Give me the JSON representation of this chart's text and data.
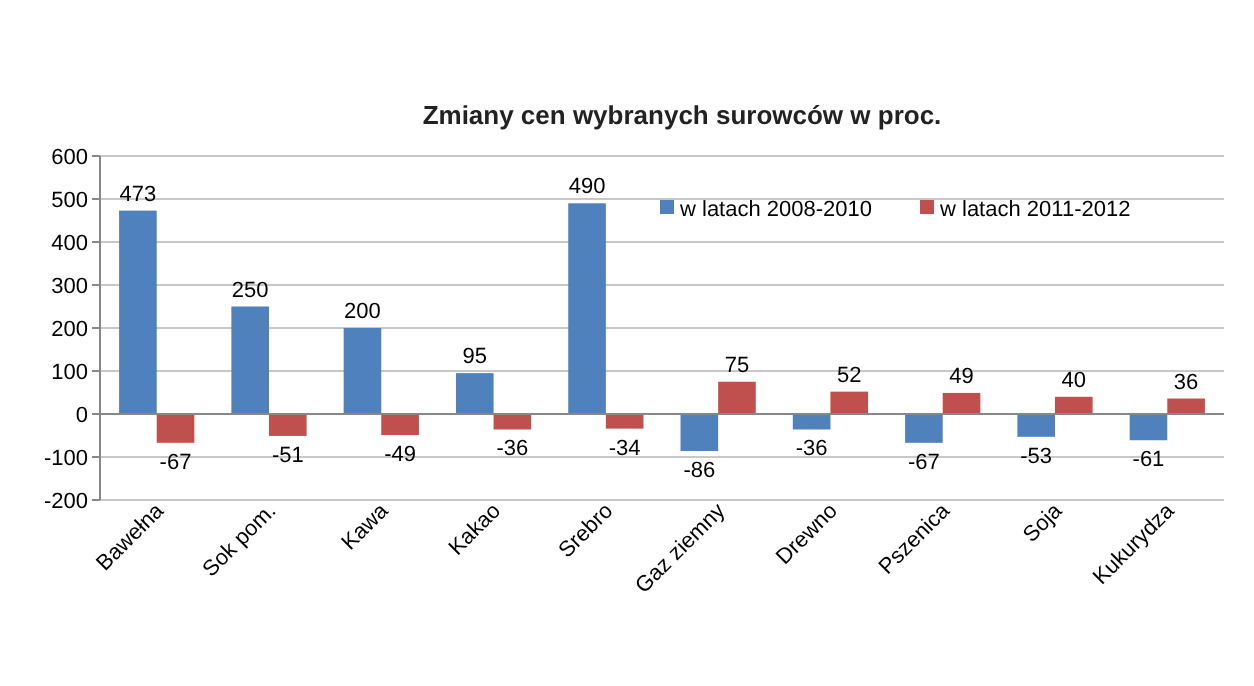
{
  "chart_data": {
    "type": "bar",
    "title": "Zmiany cen wybranych  surowców  w proc.",
    "categories": [
      "Bawełna",
      "Sok pom.",
      "Kawa",
      "Kakao",
      "Srebro",
      "Gaz ziemny",
      "Drewno",
      "Pszenica",
      "Soja",
      "Kukurydza"
    ],
    "series": [
      {
        "name": "w latach 2008-2010",
        "color": "#4f81bd",
        "values": [
          473,
          250,
          200,
          95,
          490,
          -86,
          -36,
          -67,
          -53,
          -61
        ]
      },
      {
        "name": "w latach 2011-2012",
        "color": "#c0504d",
        "values": [
          -67,
          -51,
          -49,
          -36,
          -34,
          75,
          52,
          49,
          40,
          36
        ]
      }
    ],
    "ylim": [
      -200,
      600
    ],
    "yticks": [
      -200,
      -100,
      0,
      100,
      200,
      300,
      400,
      500,
      600
    ],
    "grid": "y",
    "legend": "top right",
    "data_labels": true
  }
}
